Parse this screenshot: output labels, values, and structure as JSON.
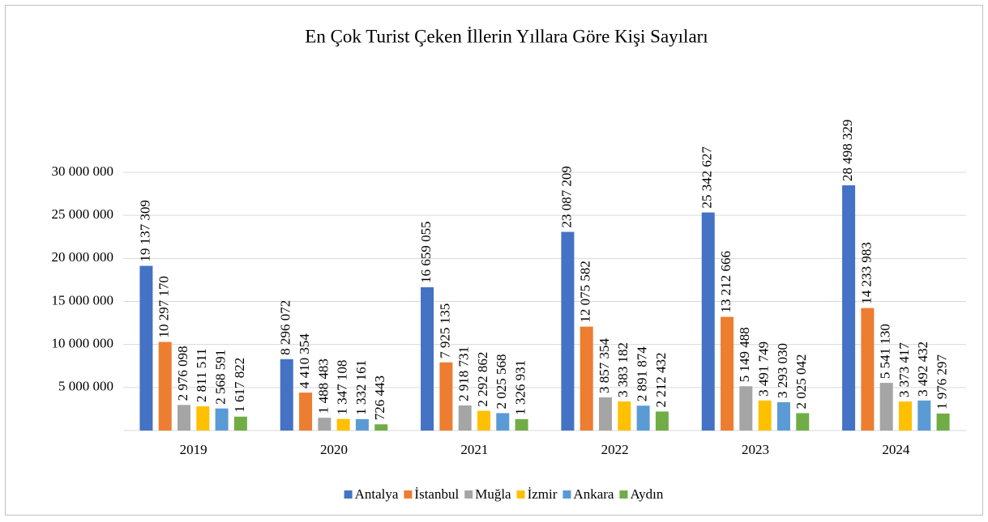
{
  "chart_data": {
    "type": "bar",
    "title": "En Çok Turist Çeken İllerin Yıllara Göre Kişi Sayıları",
    "categories": [
      "2019",
      "2020",
      "2021",
      "2022",
      "2023",
      "2024"
    ],
    "series": [
      {
        "name": "Antalya",
        "color": "#4472c4",
        "values": [
          19137309,
          8296072,
          16659055,
          23087209,
          25342627,
          28498329
        ],
        "value_labels": [
          "19 137 309",
          "8 296 072",
          "16 659 055",
          "23 087 209",
          "25 342 627",
          "28 498 329"
        ]
      },
      {
        "name": "İstanbul",
        "color": "#ed7d31",
        "values": [
          10297170,
          4410354,
          7925135,
          12075582,
          13212666,
          14233983
        ],
        "value_labels": [
          "10 297 170",
          "4 410 354",
          "7 925 135",
          "12 075 582",
          "13 212 666",
          "14 233 983"
        ]
      },
      {
        "name": "Muğla",
        "color": "#a5a5a5",
        "values": [
          2976098,
          1488483,
          2918731,
          3857354,
          5149488,
          5541130
        ],
        "value_labels": [
          "2 976 098",
          "1 488 483",
          "2 918 731",
          "3 857 354",
          "5 149 488",
          "5 541 130"
        ]
      },
      {
        "name": "İzmir",
        "color": "#ffc000",
        "values": [
          2811511,
          1347108,
          2292862,
          3383182,
          3491749,
          3373417
        ],
        "value_labels": [
          "2 811 511",
          "1 347 108",
          "2 292 862",
          "3 383 182",
          "3 491 749",
          "3 373 417"
        ]
      },
      {
        "name": "Ankara",
        "color": "#5b9bd5",
        "values": [
          2568591,
          1332161,
          2025568,
          2891874,
          3293030,
          3492432
        ],
        "value_labels": [
          "2 568 591",
          "1 332 161",
          "2 025 568",
          "2 891 874",
          "3 293 030",
          "3 492 432"
        ]
      },
      {
        "name": "Aydın",
        "color": "#70ad47",
        "values": [
          1617822,
          726443,
          1326931,
          2212432,
          2025042,
          1976297
        ],
        "value_labels": [
          "1 617 822",
          "726 443",
          "1 326 931",
          "2 212 432",
          "2 025 042",
          "1 976 297"
        ]
      }
    ],
    "ylim": [
      0,
      30000000
    ],
    "yticks": [
      {
        "value": 5000000,
        "label": "5 000 000"
      },
      {
        "value": 10000000,
        "label": "10 000 000"
      },
      {
        "value": 15000000,
        "label": "15 000 000"
      },
      {
        "value": 20000000,
        "label": "20 000 000"
      },
      {
        "value": 25000000,
        "label": "25 000 000"
      },
      {
        "value": 30000000,
        "label": "30 000 000"
      }
    ],
    "grid": true,
    "legend": "bottom"
  }
}
